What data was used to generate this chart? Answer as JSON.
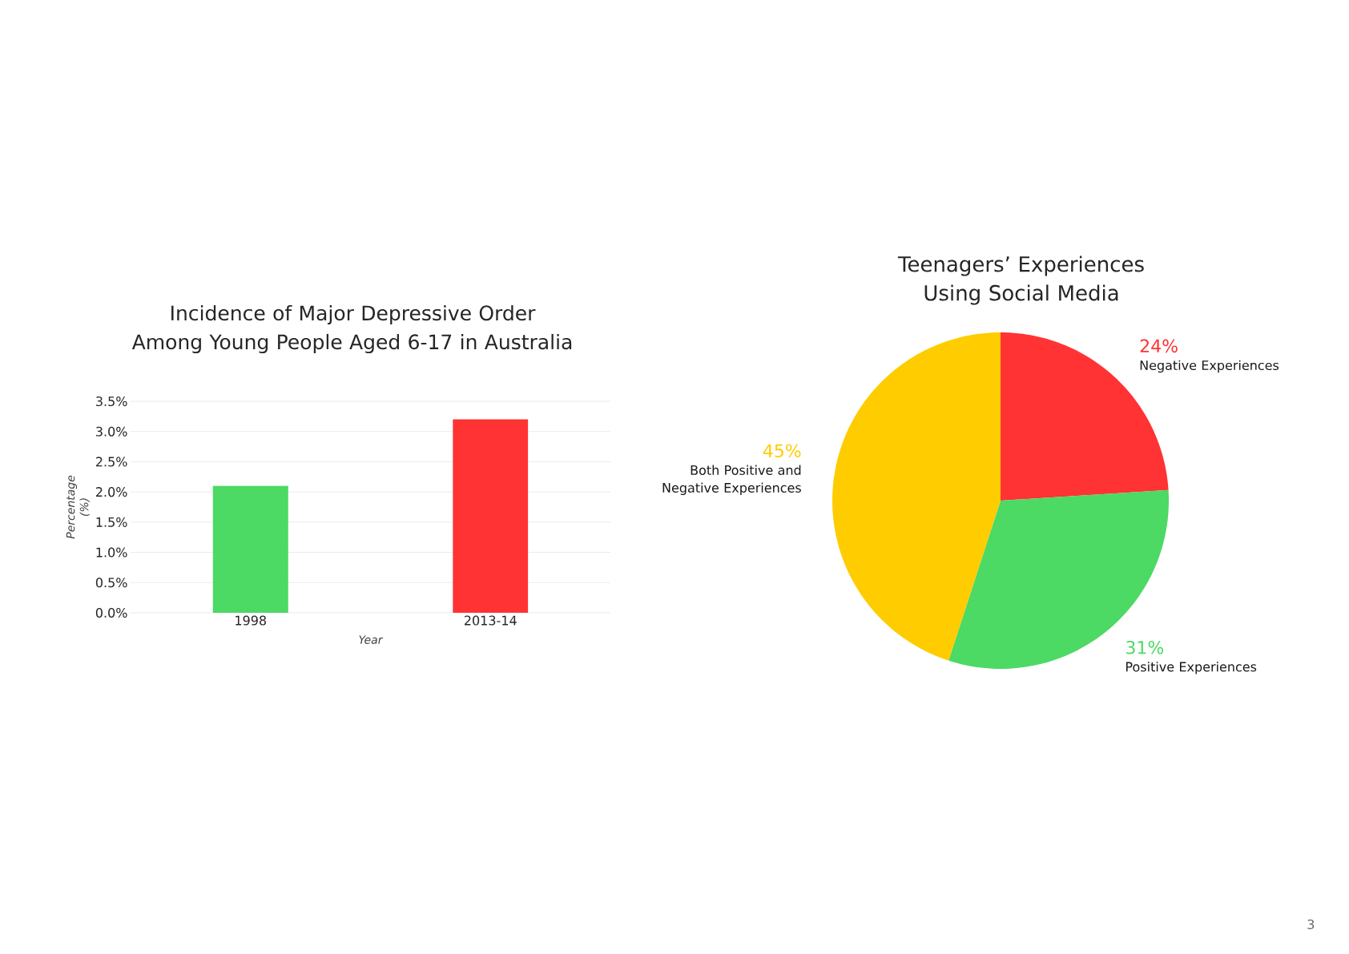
{
  "chart_data": [
    {
      "type": "bar",
      "title": "Incidence of Major Depressive Order Among Young People Aged 6-17 in Australia",
      "xlabel": "Year",
      "ylabel": "Percentage (%)",
      "categories": [
        "1998",
        "2013-14"
      ],
      "values": [
        2.1,
        3.2
      ],
      "colors": [
        "#4cd964",
        "#ff3333"
      ],
      "ylim": [
        0,
        3.5
      ],
      "yticks": [
        {
          "value": 0,
          "label": "0.0%"
        },
        {
          "value": 0.5,
          "label": "0.5%"
        },
        {
          "value": 1,
          "label": "1.0%"
        },
        {
          "value": 1.5,
          "label": "1.5%"
        },
        {
          "value": 2,
          "label": "2.0%"
        },
        {
          "value": 2.5,
          "label": "2.5%"
        },
        {
          "value": 3,
          "label": "3.0%"
        },
        {
          "value": 3.5,
          "label": "3.5%"
        }
      ],
      "grid": "y"
    },
    {
      "type": "pie",
      "title": "Teenagers’ Experiences Using Social Media",
      "categories": [
        "Negative Experiences",
        "Positive Experiences",
        "Both Positive and Negative Experiences"
      ],
      "values": [
        24,
        31,
        45
      ],
      "colors": [
        "#ff3333",
        "#4cd964",
        "#ffcc00"
      ],
      "value_labels": [
        "24%",
        "31%",
        "45%"
      ],
      "annotations": [
        "3"
      ]
    }
  ]
}
